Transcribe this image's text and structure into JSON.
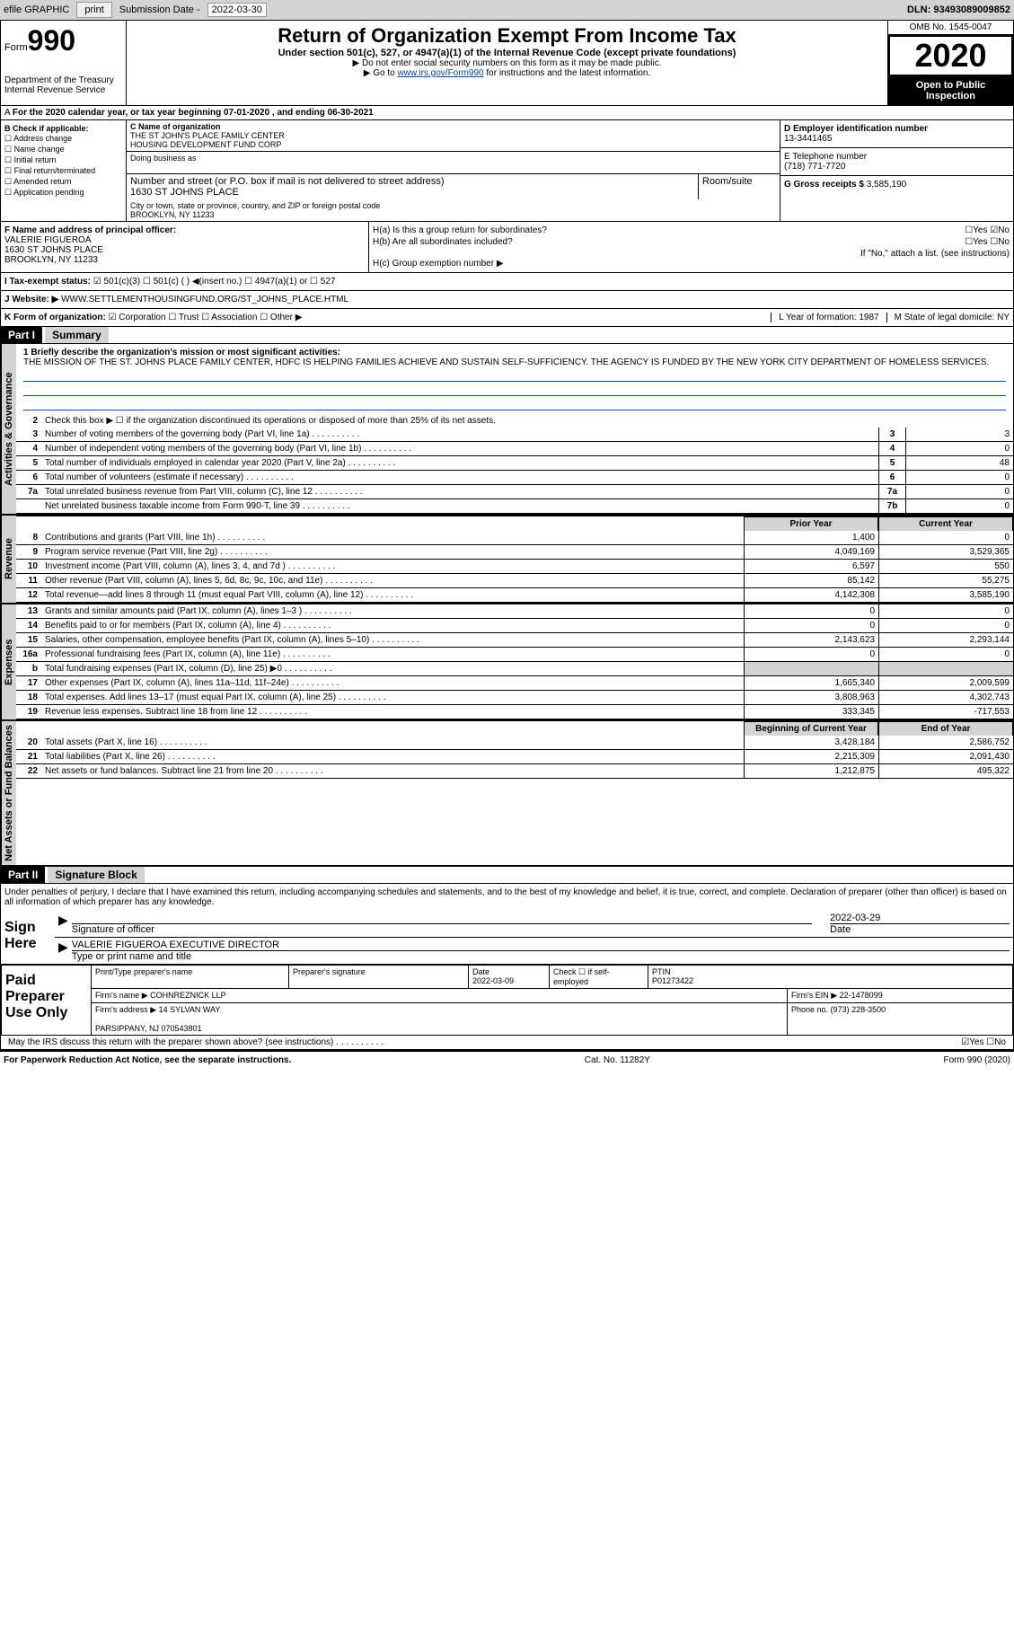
{
  "topbar": {
    "efile": "efile GRAPHIC",
    "print": "print",
    "subdate_label": "Submission Date - ",
    "subdate": "2022-03-30",
    "dln": "DLN: 93493089009852"
  },
  "header": {
    "form": "Form",
    "num": "990",
    "dept": "Department of the Treasury\nInternal Revenue Service",
    "title": "Return of Organization Exempt From Income Tax",
    "subtitle": "Under section 501(c), 527, or 4947(a)(1) of the Internal Revenue Code (except private foundations)",
    "note1": "▶ Do not enter social security numbers on this form as it may be made public.",
    "note2_pre": "▶ Go to ",
    "note2_link": "www.irs.gov/Form990",
    "note2_post": " for instructions and the latest information.",
    "omb": "OMB No. 1545-0047",
    "year": "2020",
    "inspection": "Open to Public Inspection"
  },
  "lineA": "For the 2020 calendar year, or tax year beginning 07-01-2020   , and ending 06-30-2021",
  "boxB": {
    "label": "B Check if applicable:",
    "items": [
      "☐ Address change",
      "☐ Name change",
      "☐ Initial return",
      "☐ Final return/terminated",
      "☐ Amended return",
      "☐ Application pending"
    ]
  },
  "boxC": {
    "name_label": "C Name of organization",
    "name": "THE ST JOHN'S PLACE FAMILY CENTER\nHOUSING DEVELOPMENT FUND CORP",
    "dba_label": "Doing business as",
    "addr_label": "Number and street (or P.O. box if mail is not delivered to street address)",
    "addr": "1630 ST JOHNS PLACE",
    "room_label": "Room/suite",
    "city_label": "City or town, state or province, country, and ZIP or foreign postal code",
    "city": "BROOKLYN, NY  11233"
  },
  "boxD": {
    "label": "D Employer identification number",
    "value": "13-3441465"
  },
  "boxE": {
    "label": "E Telephone number",
    "value": "(718) 771-7720"
  },
  "boxG": {
    "label": "G Gross receipts $",
    "value": "3,585,190"
  },
  "boxF": {
    "label": "F  Name and address of principal officer:",
    "name": "VALERIE FIGUEROA",
    "addr1": "1630 ST JOHNS PLACE",
    "addr2": "BROOKLYN, NY  11233"
  },
  "boxH": {
    "a": "H(a)  Is this a group return for subordinates?",
    "a_ans": "☐Yes ☑No",
    "b": "H(b)  Are all subordinates included?",
    "b_ans": "☐Yes ☐No",
    "b_note": "If \"No,\" attach a list. (see instructions)",
    "c": "H(c)  Group exemption number ▶"
  },
  "lineI": {
    "label": "I    Tax-exempt status:",
    "opts": "☑ 501(c)(3)    ☐ 501(c) (  ) ◀(insert no.)    ☐ 4947(a)(1) or   ☐ 527"
  },
  "lineJ": {
    "label": "J   Website: ▶",
    "value": "WWW.SETTLEMENTHOUSINGFUND.ORG/ST_JOHNS_PLACE.HTML"
  },
  "lineK": {
    "label": "K Form of organization:",
    "opts": "☑ Corporation  ☐ Trust  ☐ Association  ☐ Other ▶",
    "L": "L Year of formation: 1987",
    "M": "M State of legal domicile: NY"
  },
  "part1": {
    "hdr": "Part I",
    "title": "Summary",
    "mission_label": "1   Briefly describe the organization's mission or most significant activities:",
    "mission": "THE MISSION OF THE ST. JOHNS PLACE FAMILY CENTER, HDFC IS HELPING FAMILIES ACHIEVE AND SUSTAIN SELF-SUFFICIENCY. THE AGENCY IS FUNDED BY THE NEW YORK CITY DEPARTMENT OF HOMELESS SERVICES.",
    "line2": "Check this box ▶ ☐  if the organization discontinued its operations or disposed of more than 25% of its net assets.",
    "gov": [
      {
        "n": "3",
        "d": "Number of voting members of the governing body (Part VI, line 1a)",
        "b": "3",
        "v": "3"
      },
      {
        "n": "4",
        "d": "Number of independent voting members of the governing body (Part VI, line 1b)",
        "b": "4",
        "v": "0"
      },
      {
        "n": "5",
        "d": "Total number of individuals employed in calendar year 2020 (Part V, line 2a)",
        "b": "5",
        "v": "48"
      },
      {
        "n": "6",
        "d": "Total number of volunteers (estimate if necessary)",
        "b": "6",
        "v": "0"
      },
      {
        "n": "7a",
        "d": "Total unrelated business revenue from Part VIII, column (C), line 12",
        "b": "7a",
        "v": "0"
      },
      {
        "n": "",
        "d": "Net unrelated business taxable income from Form 990-T, line 39",
        "b": "7b",
        "v": "0"
      }
    ],
    "col_prior": "Prior Year",
    "col_current": "Current Year",
    "revenue": [
      {
        "n": "8",
        "d": "Contributions and grants (Part VIII, line 1h)",
        "p": "1,400",
        "c": "0"
      },
      {
        "n": "9",
        "d": "Program service revenue (Part VIII, line 2g)",
        "p": "4,049,169",
        "c": "3,529,365"
      },
      {
        "n": "10",
        "d": "Investment income (Part VIII, column (A), lines 3, 4, and 7d )",
        "p": "6,597",
        "c": "550"
      },
      {
        "n": "11",
        "d": "Other revenue (Part VIII, column (A), lines 5, 6d, 8c, 9c, 10c, and 11e)",
        "p": "85,142",
        "c": "55,275"
      },
      {
        "n": "12",
        "d": "Total revenue—add lines 8 through 11 (must equal Part VIII, column (A), line 12)",
        "p": "4,142,308",
        "c": "3,585,190"
      }
    ],
    "expenses": [
      {
        "n": "13",
        "d": "Grants and similar amounts paid (Part IX, column (A), lines 1–3 )",
        "p": "0",
        "c": "0"
      },
      {
        "n": "14",
        "d": "Benefits paid to or for members (Part IX, column (A), line 4)",
        "p": "0",
        "c": "0"
      },
      {
        "n": "15",
        "d": "Salaries, other compensation, employee benefits (Part IX, column (A), lines 5–10)",
        "p": "2,143,623",
        "c": "2,293,144"
      },
      {
        "n": "16a",
        "d": "Professional fundraising fees (Part IX, column (A), line 11e)",
        "p": "0",
        "c": "0"
      },
      {
        "n": "b",
        "d": "Total fundraising expenses (Part IX, column (D), line 25) ▶0",
        "p": "",
        "c": "",
        "shaded": true
      },
      {
        "n": "17",
        "d": "Other expenses (Part IX, column (A), lines 11a–11d, 11f–24e)",
        "p": "1,665,340",
        "c": "2,009,599"
      },
      {
        "n": "18",
        "d": "Total expenses. Add lines 13–17 (must equal Part IX, column (A), line 25)",
        "p": "3,808,963",
        "c": "4,302,743"
      },
      {
        "n": "19",
        "d": "Revenue less expenses. Subtract line 18 from line 12",
        "p": "333,345",
        "c": "-717,553"
      }
    ],
    "col_begin": "Beginning of Current Year",
    "col_end": "End of Year",
    "netassets": [
      {
        "n": "20",
        "d": "Total assets (Part X, line 16)",
        "p": "3,428,184",
        "c": "2,586,752"
      },
      {
        "n": "21",
        "d": "Total liabilities (Part X, line 26)",
        "p": "2,215,309",
        "c": "2,091,430"
      },
      {
        "n": "22",
        "d": "Net assets or fund balances. Subtract line 21 from line 20",
        "p": "1,212,875",
        "c": "495,322"
      }
    ]
  },
  "part2": {
    "hdr": "Part II",
    "title": "Signature Block",
    "perjury": "Under penalties of perjury, I declare that I have examined this return, including accompanying schedules and statements, and to the best of my knowledge and belief, it is true, correct, and complete. Declaration of preparer (other than officer) is based on all information of which preparer has any knowledge.",
    "sign_here": "Sign Here",
    "sig_officer": "Signature of officer",
    "sig_date": "2022-03-29",
    "date_label": "Date",
    "officer_name": "VALERIE FIGUEROA  EXECUTIVE DIRECTOR",
    "type_name": "Type or print name and title",
    "paid_label": "Paid Preparer Use Only",
    "prep_name_label": "Print/Type preparer's name",
    "prep_sig_label": "Preparer's signature",
    "prep_date_label": "Date",
    "prep_date": "2022-03-09",
    "self_emp": "Check ☐ if self-employed",
    "ptin_label": "PTIN",
    "ptin": "P01273422",
    "firm_name_label": "Firm's name    ▶",
    "firm_name": "COHNREZNICK LLP",
    "firm_ein_label": "Firm's EIN ▶",
    "firm_ein": "22-1478099",
    "firm_addr_label": "Firm's address ▶",
    "firm_addr": "14 SYLVAN WAY\n\nPARSIPPANY, NJ  070543801",
    "firm_phone_label": "Phone no.",
    "firm_phone": "(973) 228-3500",
    "discuss": "May the IRS discuss this return with the preparer shown above? (see instructions)",
    "discuss_ans": "☑Yes  ☐No"
  },
  "footer": {
    "left": "For Paperwork Reduction Act Notice, see the separate instructions.",
    "mid": "Cat. No. 11282Y",
    "right": "Form 990 (2020)"
  },
  "side_labels": {
    "gov": "Activities & Governance",
    "rev": "Revenue",
    "exp": "Expenses",
    "net": "Net Assets or Fund Balances"
  }
}
